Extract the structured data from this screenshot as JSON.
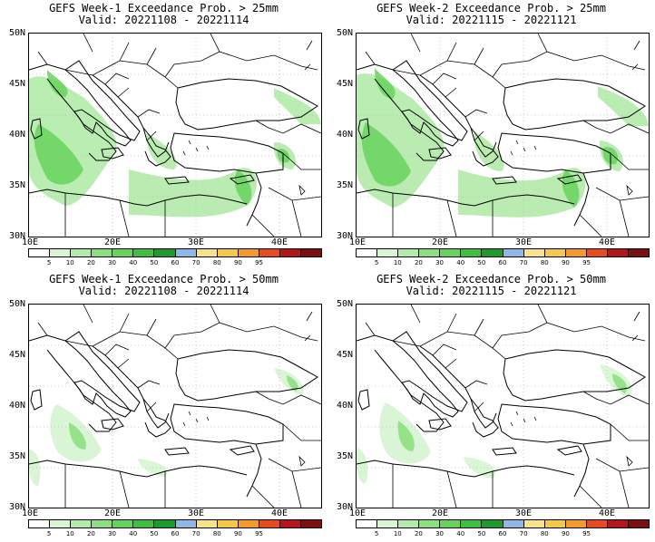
{
  "colors": {
    "map_background": "#ffffff",
    "coastline": "#000000",
    "gridline": "#bbbbbb",
    "scale": [
      "#ffffff",
      "#d9f5d4",
      "#b3ebaa",
      "#8de080",
      "#66d35c",
      "#3fbe3f",
      "#1e9a2d",
      "#8fb8e6",
      "#f8e28a",
      "#f5c84a",
      "#f29a2e",
      "#e84b1f",
      "#b3171b",
      "#7a1010"
    ]
  },
  "colorbar_labels": [
    "5",
    "10",
    "20",
    "30",
    "40",
    "50",
    "60",
    "70",
    "80",
    "90",
    "95"
  ],
  "lat_labels": [
    "50N",
    "45N",
    "40N",
    "35N",
    "30N"
  ],
  "lon_labels": [
    "10E",
    "20E",
    "30E",
    "40E"
  ],
  "panels": [
    {
      "title": "GEFS Week-1 Exceedance Prob. > 25mm",
      "valid": "Valid: 20221108 - 20221114"
    },
    {
      "title": "GEFS Week-2 Exceedance Prob. > 25mm",
      "valid": "Valid: 20221115 - 20221121"
    },
    {
      "title": "GEFS Week-1 Exceedance Prob. > 50mm",
      "valid": "Valid: 20221108 - 20221114"
    },
    {
      "title": "GEFS Week-2 Exceedance Prob. > 50mm",
      "valid": "Valid: 20221115 - 20221121"
    }
  ]
}
